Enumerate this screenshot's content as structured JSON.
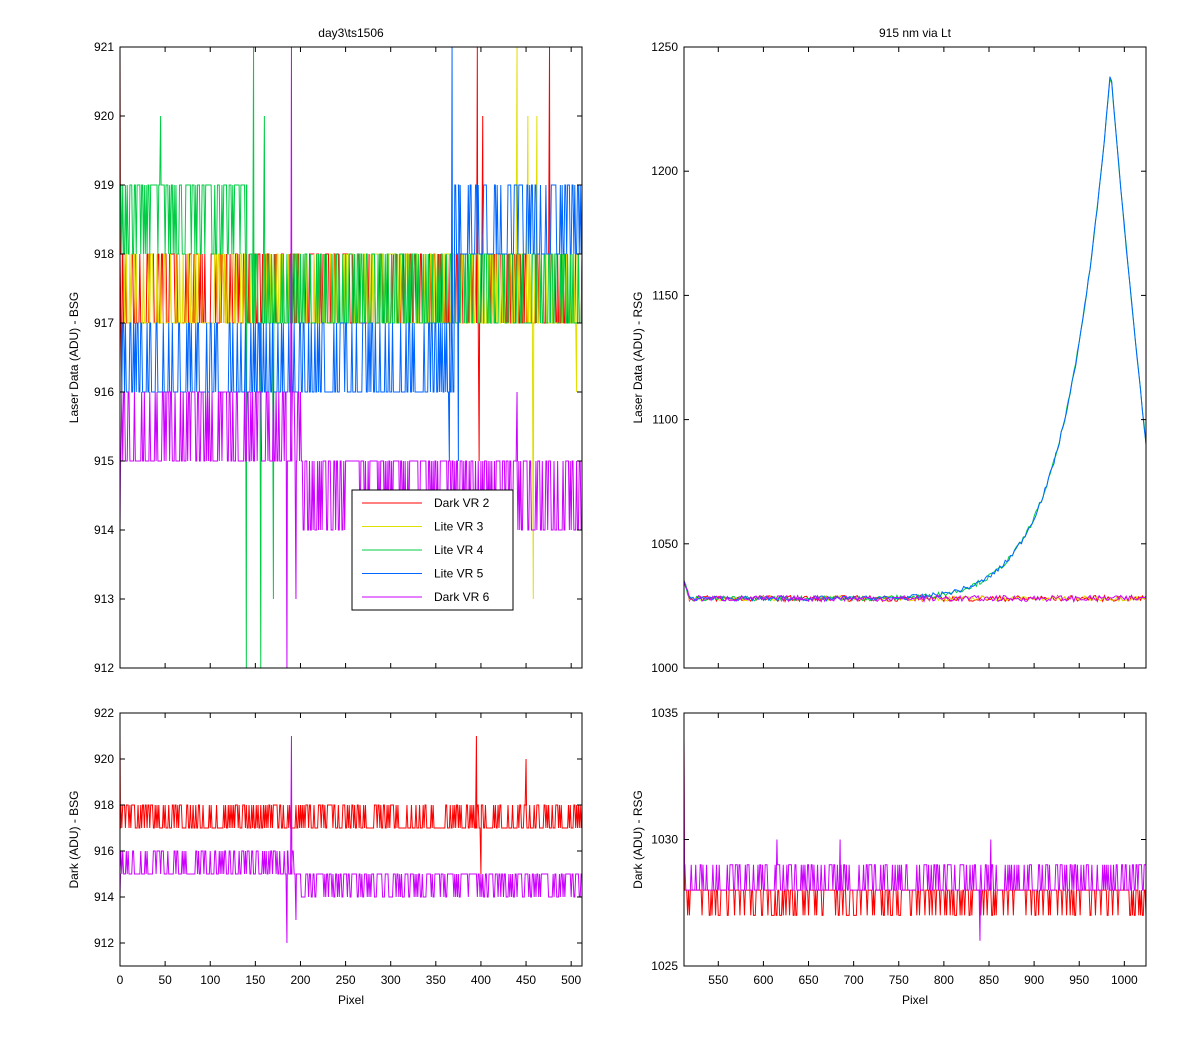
{
  "chart_data": [
    {
      "id": "tl",
      "type": "line",
      "title": "day3\\ts1506",
      "xlabel": "",
      "ylabel": "Laser Data (ADU) - BSG",
      "xlim": [
        0,
        512
      ],
      "ylim": [
        912,
        921
      ],
      "xticks": [],
      "yticks": [
        912,
        913,
        914,
        915,
        916,
        917,
        918,
        919,
        920,
        921
      ],
      "legend": {
        "placement": "lower-right",
        "entries": [
          "Dark VR 2",
          "Lite VR 3",
          "Lite VR 4",
          "Lite VR 5",
          "Dark VR 6"
        ]
      },
      "series": [
        {
          "name": "Dark VR 2",
          "color": "#ff0000",
          "gen": {
            "kind": "steps",
            "base": 917,
            "alt": 918,
            "p": 0.45,
            "x0": 0,
            "x1": 512,
            "spikes": [
              [
                0,
                921
              ],
              [
                2,
                916
              ],
              [
                396,
                921
              ],
              [
                398,
                915
              ],
              [
                402,
                920
              ],
              [
                476,
                921
              ]
            ]
          }
        },
        {
          "name": "Lite VR 3",
          "color": "#e0e000",
          "gen": {
            "kind": "steps",
            "base": 917,
            "alt": 918,
            "p": 0.4,
            "x0": 0,
            "x1": 512,
            "spikes": [
              [
                440,
                921
              ],
              [
                452,
                920
              ],
              [
                458,
                913
              ],
              [
                462,
                920
              ],
              [
                506,
                916
              ]
            ]
          }
        },
        {
          "name": "Lite VR 4",
          "color": "#00cc44",
          "gen": {
            "kind": "steps2",
            "seg": [
              [
                0,
                140,
                919,
                918
              ],
              [
                140,
                512,
                917,
                918
              ]
            ],
            "p": 0.4,
            "spikes": [
              [
                45,
                920
              ],
              [
                140,
                912
              ],
              [
                148,
                921
              ],
              [
                156,
                912
              ],
              [
                160,
                920
              ],
              [
                170,
                913
              ]
            ]
          }
        },
        {
          "name": "Lite VR 5",
          "color": "#0066ff",
          "gen": {
            "kind": "steps2",
            "seg": [
              [
                0,
                370,
                916,
                917
              ],
              [
                370,
                512,
                918,
                919
              ]
            ],
            "p": 0.35,
            "spikes": [
              [
                365,
                915
              ],
              [
                368,
                921
              ],
              [
                375,
                915
              ]
            ]
          }
        },
        {
          "name": "Dark VR 6",
          "color": "#cc00ff",
          "gen": {
            "kind": "steps2",
            "seg": [
              [
                0,
                200,
                915,
                916
              ],
              [
                200,
                512,
                915,
                914
              ]
            ],
            "p": 0.4,
            "spikes": [
              [
                0,
                914
              ],
              [
                185,
                912
              ],
              [
                190,
                921
              ],
              [
                195,
                913
              ],
              [
                440,
                916
              ]
            ]
          }
        }
      ]
    },
    {
      "id": "tr",
      "type": "line",
      "title": "915 nm via Lt",
      "xlabel": "",
      "ylabel": "Laser Data (ADU) - RSG",
      "xlim": [
        512,
        1024
      ],
      "ylim": [
        1000,
        1250
      ],
      "xticks": [],
      "yticks": [
        1000,
        1050,
        1100,
        1150,
        1200,
        1250
      ],
      "series": [
        {
          "name": "Dark VR 2",
          "color": "#ff0000",
          "gen": {
            "kind": "flat",
            "base": 1028,
            "noise": 1.2
          }
        },
        {
          "name": "Lite VR 3",
          "color": "#e0e000",
          "gen": {
            "kind": "flat",
            "base": 1028,
            "noise": 1.0
          }
        },
        {
          "name": "Lite VR 4",
          "color": "#00cc44",
          "gen": {
            "kind": "peak",
            "base": 1028,
            "peak": 1242,
            "xpeak": 985
          }
        },
        {
          "name": "Lite VR 5",
          "color": "#0066ff",
          "gen": {
            "kind": "peak",
            "base": 1028,
            "peak": 1242,
            "xpeak": 985
          }
        },
        {
          "name": "Dark VR 6",
          "color": "#cc00ff",
          "gen": {
            "kind": "flat",
            "base": 1028,
            "noise": 1.2
          }
        }
      ]
    },
    {
      "id": "bl",
      "type": "line",
      "title": "",
      "xlabel": "Pixel",
      "ylabel": "Dark (ADU) - BSG",
      "xlim": [
        0,
        512
      ],
      "ylim": [
        911,
        922
      ],
      "xticks": [
        0,
        50,
        100,
        150,
        200,
        250,
        300,
        350,
        400,
        450,
        500
      ],
      "yticks": [
        912,
        914,
        916,
        918,
        920,
        922
      ],
      "series": [
        {
          "name": "Dark VR 2",
          "color": "#ff0000",
          "gen": {
            "kind": "steps",
            "base": 917,
            "alt": 918,
            "p": 0.4,
            "x0": 0,
            "x1": 512,
            "spikes": [
              [
                0,
                921
              ],
              [
                395,
                921
              ],
              [
                400,
                915
              ],
              [
                450,
                920
              ],
              [
                470,
                918
              ]
            ]
          }
        },
        {
          "name": "Dark VR 6",
          "color": "#cc00ff",
          "gen": {
            "kind": "steps2",
            "seg": [
              [
                0,
                200,
                915,
                916
              ],
              [
                200,
                512,
                915,
                914
              ]
            ],
            "p": 0.4,
            "spikes": [
              [
                0,
                914
              ],
              [
                185,
                912
              ],
              [
                190,
                921
              ],
              [
                195,
                913
              ]
            ]
          }
        }
      ]
    },
    {
      "id": "br",
      "type": "line",
      "title": "",
      "xlabel": "Pixel",
      "ylabel": "Dark (ADU) - RSG",
      "xlim": [
        512,
        1024
      ],
      "ylim": [
        1025,
        1035
      ],
      "xticks": [
        550,
        600,
        650,
        700,
        750,
        800,
        850,
        900,
        950,
        1000
      ],
      "yticks": [
        1025,
        1030,
        1035
      ],
      "series": [
        {
          "name": "Dark VR 2",
          "color": "#ff0000",
          "gen": {
            "kind": "rsgdark",
            "base": 1028,
            "alt": 1027,
            "p": 0.3,
            "spikes": [
              [
                512,
                1034
              ]
            ]
          }
        },
        {
          "name": "Dark VR 6",
          "color": "#cc00ff",
          "gen": {
            "kind": "rsgdark",
            "base": 1028,
            "alt": 1029,
            "p": 0.35,
            "spikes": [
              [
                512,
                1034
              ],
              [
                615,
                1030
              ],
              [
                685,
                1030
              ],
              [
                840,
                1026
              ],
              [
                852,
                1030
              ]
            ]
          }
        }
      ]
    }
  ]
}
